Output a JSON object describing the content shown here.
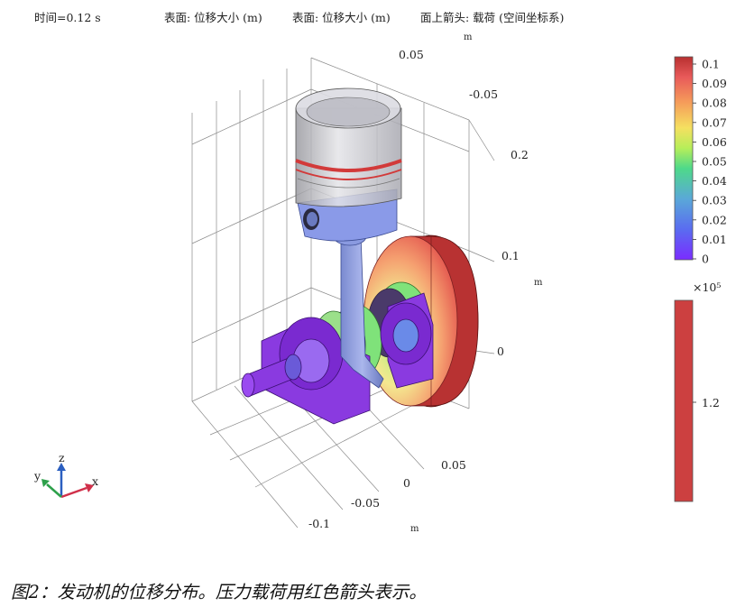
{
  "header": {
    "time": "时间=0.12 s",
    "surface1": "表面: 位移大小 (m)",
    "surface2": "表面: 位移大小 (m)",
    "arrows": "面上箭头: 载荷 (空间坐标系)"
  },
  "axes": {
    "unit": "m",
    "z_ticks": [
      "0.2",
      "0.1",
      "0"
    ],
    "y_ticks": [
      "0.05",
      "-0.05"
    ],
    "x_ticks": [
      "0.05",
      "0",
      "-0.05",
      "-0.1"
    ]
  },
  "triad": {
    "x": "x",
    "y": "y",
    "z": "z"
  },
  "colorbar_displacement": {
    "ticks": [
      "0.1",
      "0.09",
      "0.08",
      "0.07",
      "0.06",
      "0.05",
      "0.04",
      "0.03",
      "0.02",
      "0.01",
      "0"
    ],
    "range": [
      0,
      0.1
    ]
  },
  "colorbar_load": {
    "multiplier": "×10⁵",
    "ticks": [
      "1.2"
    ],
    "color": "#cc4040"
  },
  "caption": "图2：发动机的位移分布。压力载荷用红色箭头表示。"
}
